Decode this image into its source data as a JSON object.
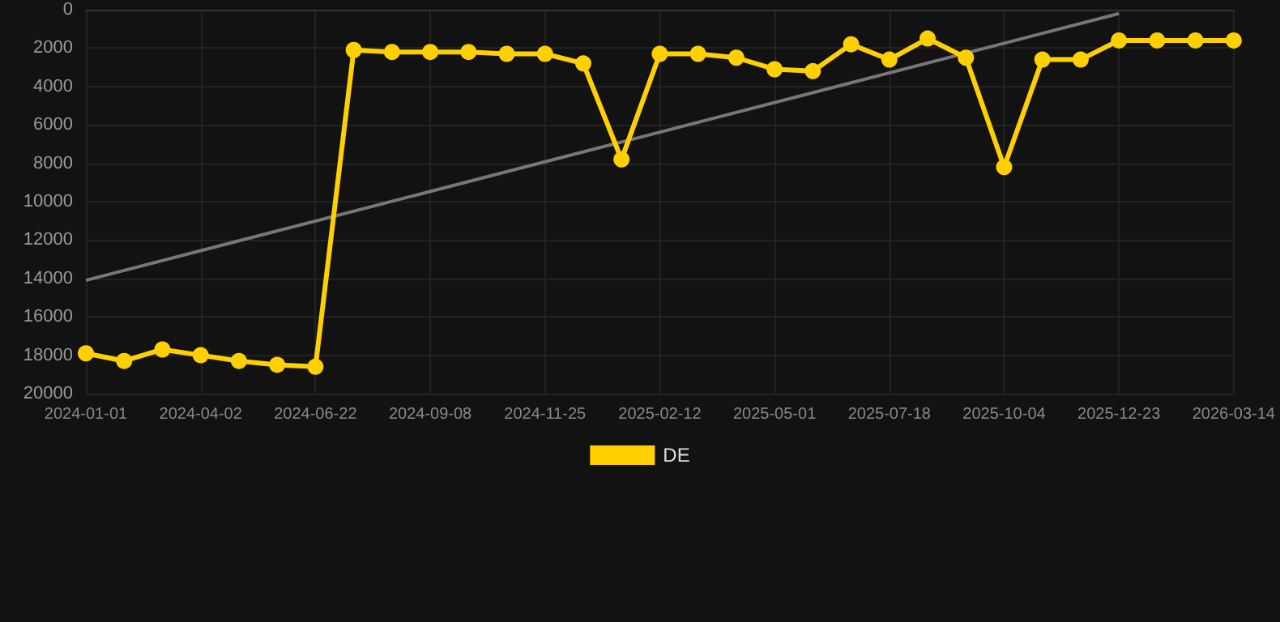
{
  "chart_data": {
    "type": "line",
    "categories": [
      "2024-01-01",
      null,
      null,
      "2024-04-02",
      null,
      null,
      "2024-06-22",
      null,
      null,
      "2024-09-08",
      null,
      null,
      "2024-11-25",
      null,
      null,
      "2025-02-12",
      null,
      null,
      "2025-05-01",
      null,
      null,
      "2025-07-18",
      null,
      null,
      "2025-10-04",
      null,
      null,
      "2025-12-23",
      null,
      null,
      "2026-03-14"
    ],
    "series": [
      {
        "name": "DE",
        "color": "#ffd000",
        "marker": "circle",
        "values": [
          17900,
          18300,
          17700,
          18000,
          18300,
          18500,
          18600,
          2100,
          2200,
          2200,
          2200,
          2300,
          2300,
          2800,
          7800,
          2300,
          2300,
          2500,
          3100,
          3200,
          1800,
          2600,
          1500,
          2500,
          8200,
          2600,
          2600,
          1600,
          1600,
          1600,
          1600
        ]
      },
      {
        "color": "#777777",
        "marker": "none",
        "values": [
          14100,
          null,
          null,
          null,
          null,
          null,
          null,
          null,
          null,
          null,
          null,
          null,
          null,
          null,
          null,
          null,
          null,
          null,
          null,
          null,
          null,
          null,
          null,
          null,
          null,
          null,
          null,
          200,
          null,
          null,
          null
        ]
      }
    ],
    "ylim": [
      20000,
      0
    ],
    "yticks": [
      0,
      2000,
      4000,
      6000,
      8000,
      10000,
      12000,
      14000,
      16000,
      18000,
      20000
    ],
    "grid": true,
    "legend": "bottom"
  }
}
